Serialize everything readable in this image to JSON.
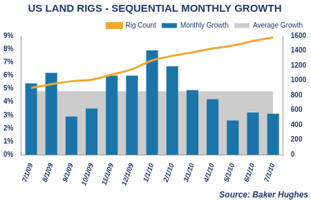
{
  "chart_data": {
    "type": "bar",
    "title": "US LAND RIGS - SEQUENTIAL MONTHLY GROWTH",
    "source": "Source: Baker Hughes",
    "categories": [
      "7/1/09",
      "8/1/09",
      "9/1/09",
      "10/1/09",
      "11/1/09",
      "12/1/09",
      "1/1/10",
      "2/1/10",
      "3/1/10",
      "4/1/10",
      "5/1/10",
      "6/1/10",
      "7/1/10"
    ],
    "series": [
      {
        "name": "Average Growth",
        "type": "area",
        "color": "#cccccc",
        "values": [
          4.8,
          4.8,
          4.8,
          4.8,
          4.8,
          4.8,
          4.8,
          4.8,
          4.8,
          4.8,
          4.8,
          4.8,
          4.8
        ]
      },
      {
        "name": "Monthly Growth",
        "type": "bar",
        "color": "#1b75a8",
        "values": [
          5.4,
          6.2,
          2.9,
          3.5,
          6.0,
          6.0,
          7.9,
          6.7,
          4.9,
          4.2,
          2.6,
          3.2,
          3.1
        ]
      },
      {
        "name": "Rig Count",
        "type": "line",
        "color": "#f0a830",
        "axis": "y2",
        "values": [
          900,
          950,
          990,
          1010,
          1080,
          1150,
          1270,
          1330,
          1380,
          1430,
          1470,
          1530,
          1580
        ]
      }
    ],
    "ylim": [
      0,
      9
    ],
    "yticks": [
      {
        "value": 0,
        "label": "0%"
      },
      {
        "value": 1,
        "label": "1%"
      },
      {
        "value": 2,
        "label": "2%"
      },
      {
        "value": 3,
        "label": "3%"
      },
      {
        "value": 4,
        "label": "4%"
      },
      {
        "value": 5,
        "label": "5%"
      },
      {
        "value": 6,
        "label": "6%"
      },
      {
        "value": 7,
        "label": "7%"
      },
      {
        "value": 8,
        "label": "8%"
      },
      {
        "value": 9,
        "label": "9%"
      }
    ],
    "y2lim": [
      0,
      1600
    ],
    "y2ticks": [
      0,
      200,
      400,
      600,
      800,
      1000,
      1200,
      1400,
      1600
    ],
    "legend": "top",
    "grid": false
  }
}
